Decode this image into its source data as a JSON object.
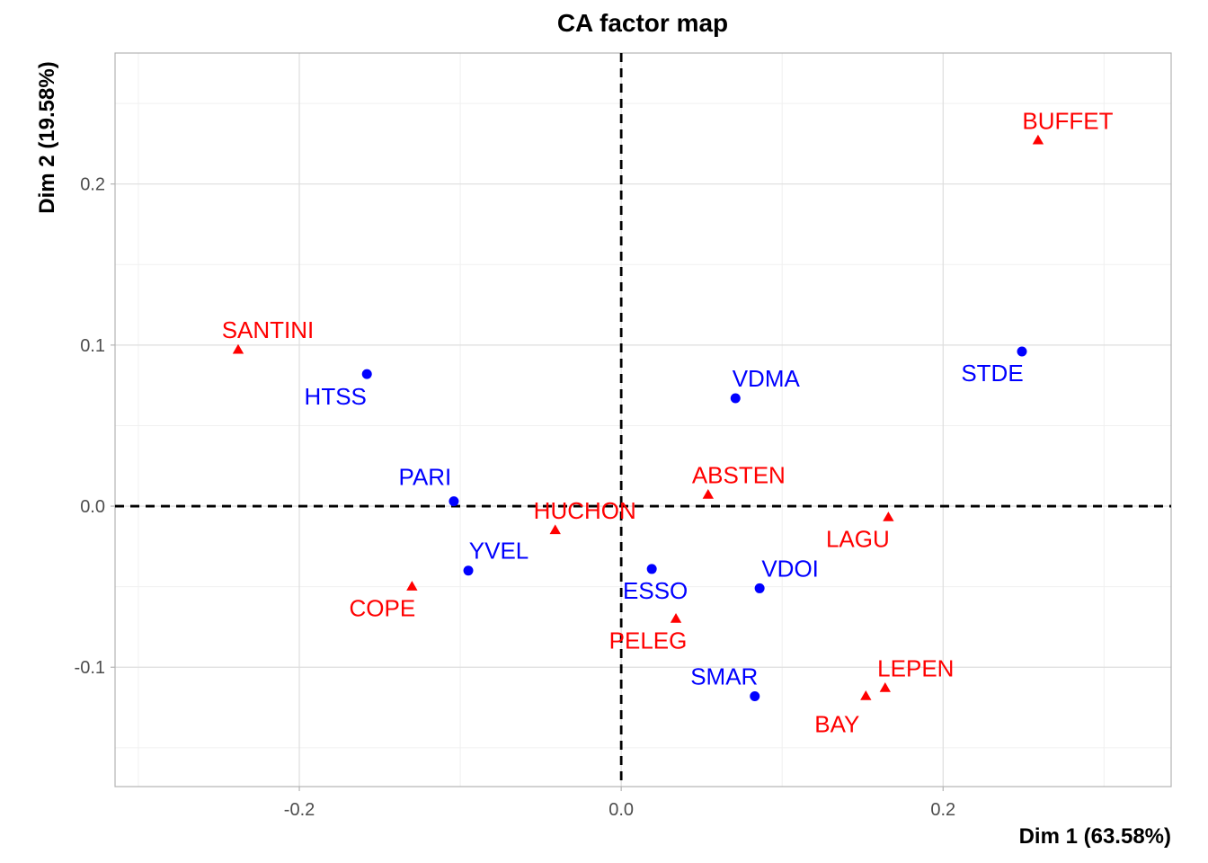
{
  "chart_data": {
    "type": "scatter",
    "title": "CA factor map",
    "xlabel": "Dim 1 (63.58%)",
    "ylabel": "Dim 2 (19.58%)",
    "xlim": [
      -0.3145,
      0.3417
    ],
    "ylim": [
      -0.1741,
      0.2813
    ],
    "x_ticks": [
      -0.2,
      0.0,
      0.2
    ],
    "x_tick_labels": [
      "-0.2",
      "0.0",
      "0.2"
    ],
    "y_ticks": [
      -0.1,
      0.0,
      0.1,
      0.2
    ],
    "y_tick_labels": [
      "-0.1",
      "0.0",
      "0.1",
      "0.2"
    ],
    "grid": true,
    "reference_lines": {
      "x": 0,
      "y": 0,
      "style": "dashed"
    },
    "series": [
      {
        "marker": "circle",
        "color": "#0000ff",
        "points": [
          {
            "label": "HTSS",
            "x": -0.158,
            "y": 0.082
          },
          {
            "label": "PARI",
            "x": -0.104,
            "y": 0.003
          },
          {
            "label": "YVEL",
            "x": -0.095,
            "y": -0.04
          },
          {
            "label": "ESSO",
            "x": 0.019,
            "y": -0.039
          },
          {
            "label": "VDOI",
            "x": 0.086,
            "y": -0.051
          },
          {
            "label": "VDMA",
            "x": 0.071,
            "y": 0.067
          },
          {
            "label": "SMAR",
            "x": 0.083,
            "y": -0.118
          },
          {
            "label": "STDE",
            "x": 0.249,
            "y": 0.096
          }
        ]
      },
      {
        "marker": "triangle",
        "color": "#ff0000",
        "points": [
          {
            "label": "SANTINI",
            "x": -0.238,
            "y": 0.097
          },
          {
            "label": "COPE",
            "x": -0.13,
            "y": -0.05
          },
          {
            "label": "HUCHON",
            "x": -0.041,
            "y": -0.015
          },
          {
            "label": "ABSTEN",
            "x": 0.054,
            "y": 0.007
          },
          {
            "label": "PELEG",
            "x": 0.034,
            "y": -0.07
          },
          {
            "label": "LAGU",
            "x": 0.166,
            "y": -0.007
          },
          {
            "label": "LEPEN",
            "x": 0.164,
            "y": -0.113
          },
          {
            "label": "BAY",
            "x": 0.152,
            "y": -0.118
          },
          {
            "label": "BUFFET",
            "x": 0.259,
            "y": 0.227
          }
        ]
      }
    ]
  }
}
